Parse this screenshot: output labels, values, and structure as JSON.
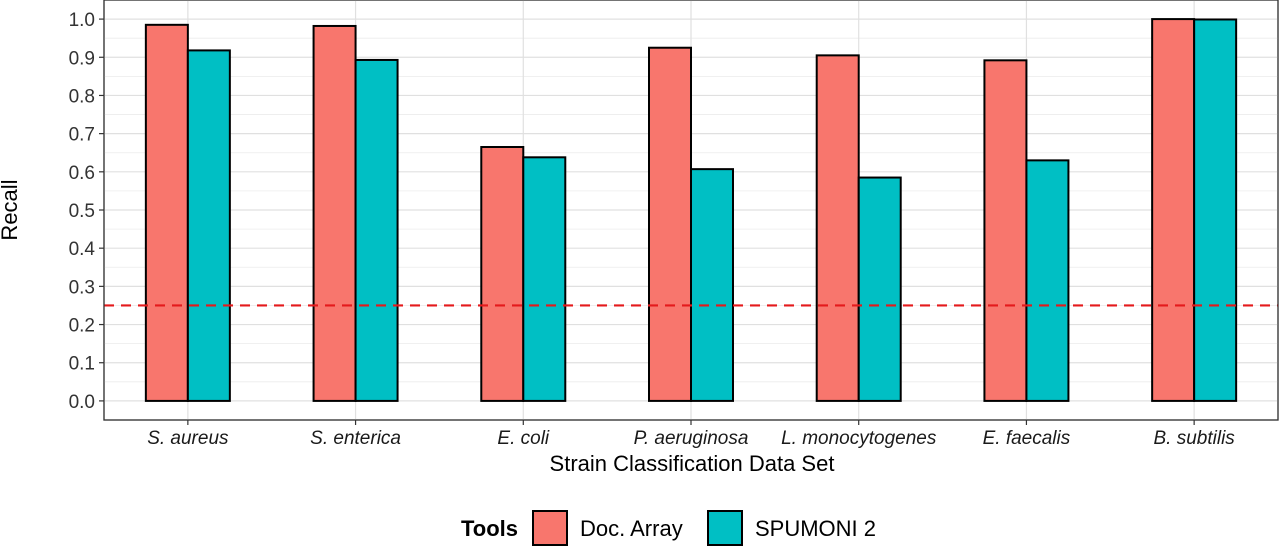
{
  "chart_data": {
    "type": "bar",
    "categories": [
      "S. aureus",
      "S. enterica",
      "E. coli",
      "P. aeruginosa",
      "L. monocytogenes",
      "E. faecalis",
      "B. subtilis"
    ],
    "series": [
      {
        "name": "Doc. Array",
        "color": "#F8766D",
        "values": [
          0.985,
          0.982,
          0.665,
          0.925,
          0.905,
          0.892,
          1.0
        ]
      },
      {
        "name": "SPUMONI 2",
        "color": "#00BFC4",
        "values": [
          0.918,
          0.893,
          0.638,
          0.607,
          0.585,
          0.63,
          0.999
        ]
      }
    ],
    "xlabel": "Strain Classification Data Set",
    "ylabel": "Recall",
    "ylim": [
      -0.05,
      1.05
    ],
    "yticks": [
      "0.0",
      "0.1",
      "0.2",
      "0.3",
      "0.4",
      "0.5",
      "0.6",
      "0.7",
      "0.8",
      "0.9",
      "1.0"
    ],
    "reference_line": {
      "y": 0.25,
      "style": "dashed",
      "color": "#E41A1C"
    },
    "legend": {
      "title": "Tools",
      "position": "bottom"
    },
    "grid": true
  }
}
